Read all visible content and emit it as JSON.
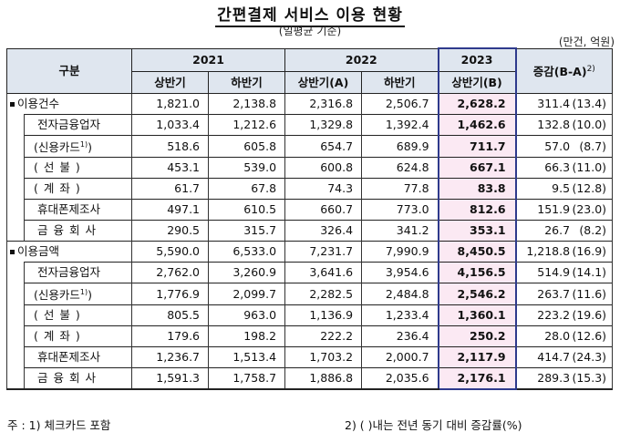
{
  "title": "간편결제 서비스 이용 현황",
  "subtitle": "(일평균 기준)",
  "unit": "(만건, 억원)",
  "header": {
    "category": "구분",
    "years": [
      "2021",
      "2022",
      "2023"
    ],
    "halves": [
      "상반기",
      "하반기",
      "상반기(A)",
      "하반기",
      "상반기(B)"
    ],
    "change": "증감(B-A)",
    "change_sup": "2)"
  },
  "rows": [
    {
      "label": "이용건수",
      "values": [
        "1,821.0",
        "2,138.8",
        "2,316.8",
        "2,506.7",
        "2,628.2"
      ],
      "change": "311.4",
      "pct": "(13.4)"
    },
    {
      "label": "전자금융업자",
      "values": [
        "1,033.4",
        "1,212.6",
        "1,329.8",
        "1,392.4",
        "1,462.6"
      ],
      "change": "132.8",
      "pct": "(10.0)"
    },
    {
      "label": "(신용카드",
      "sup": "1)",
      "label_end": ")",
      "values": [
        "518.6",
        "605.8",
        "654.7",
        "689.9",
        "711.7"
      ],
      "change": "57.0",
      "pct": "(8.7)"
    },
    {
      "label": "(선불)",
      "values": [
        "453.1",
        "539.0",
        "600.8",
        "624.8",
        "667.1"
      ],
      "change": "66.3",
      "pct": "(11.0)"
    },
    {
      "label": "(계좌)",
      "values": [
        "61.7",
        "67.8",
        "74.3",
        "77.8",
        "83.8"
      ],
      "change": "9.5",
      "pct": "(12.8)"
    },
    {
      "label": "휴대폰제조사",
      "values": [
        "497.1",
        "610.5",
        "660.7",
        "773.0",
        "812.6"
      ],
      "change": "151.9",
      "pct": "(23.0)"
    },
    {
      "label": "금융회사",
      "values": [
        "290.5",
        "315.7",
        "326.4",
        "341.2",
        "353.1"
      ],
      "change": "26.7",
      "pct": "(8.2)"
    },
    {
      "label": "이용금액",
      "values": [
        "5,590.0",
        "6,533.0",
        "7,231.7",
        "7,990.9",
        "8,450.5"
      ],
      "change": "1,218.8",
      "pct": "(16.9)"
    },
    {
      "label": "전자금융업자",
      "values": [
        "2,762.0",
        "3,260.9",
        "3,641.6",
        "3,954.6",
        "4,156.5"
      ],
      "change": "514.9",
      "pct": "(14.1)"
    },
    {
      "label": "(신용카드",
      "sup": "1)",
      "label_end": ")",
      "values": [
        "1,776.9",
        "2,099.7",
        "2,282.5",
        "2,484.8",
        "2,546.2"
      ],
      "change": "263.7",
      "pct": "(11.6)"
    },
    {
      "label": "(선불)",
      "values": [
        "805.5",
        "963.0",
        "1,136.9",
        "1,233.4",
        "1,360.1"
      ],
      "change": "223.2",
      "pct": "(19.6)"
    },
    {
      "label": "(계좌)",
      "values": [
        "179.6",
        "198.2",
        "222.2",
        "236.4",
        "250.2"
      ],
      "change": "28.0",
      "pct": "(12.6)"
    },
    {
      "label": "휴대폰제조사",
      "values": [
        "1,236.7",
        "1,513.4",
        "1,703.2",
        "2,000.7",
        "2,117.9"
      ],
      "change": "414.7",
      "pct": "(24.3)"
    },
    {
      "label": "금융회사",
      "values": [
        "1,591.3",
        "1,758.7",
        "1,886.8",
        "2,035.6",
        "2,176.1"
      ],
      "change": "289.3",
      "pct": "(15.3)"
    }
  ],
  "footnotes": {
    "note1": "주 : 1) 체크카드 포함",
    "note2": "2) (   )내는 전년 동기 대비 증감률(%)"
  }
}
